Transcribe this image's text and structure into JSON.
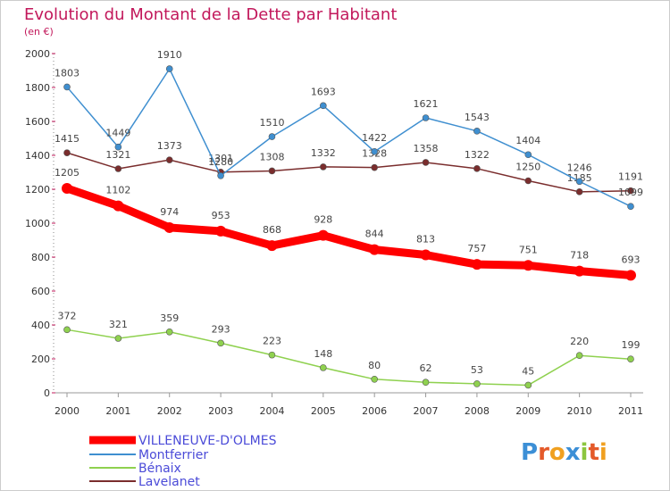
{
  "chart_data": {
    "type": "line",
    "title": "Evolution du Montant de la Dette par Habitant",
    "subtitle": "(en €)",
    "xlabel": "",
    "ylabel": "",
    "categories": [
      "2000",
      "2001",
      "2002",
      "2003",
      "2004",
      "2005",
      "2006",
      "2007",
      "2008",
      "2009",
      "2010",
      "2011"
    ],
    "ylim": [
      0,
      2000
    ],
    "yticks": [
      0,
      200,
      400,
      600,
      800,
      1000,
      1200,
      1400,
      1600,
      1800,
      2000
    ],
    "grid": false,
    "legend_position": "bottom-left",
    "series": [
      {
        "name": "VILLENEUVE-D'OLMES",
        "color": "#ff0000",
        "values": [
          1205,
          1102,
          974,
          953,
          868,
          928,
          844,
          813,
          757,
          751,
          718,
          693
        ]
      },
      {
        "name": "Montferrier",
        "color": "#3f8fd0",
        "values": [
          1803,
          1449,
          1910,
          1280,
          1510,
          1693,
          1422,
          1621,
          1543,
          1404,
          1246,
          1099
        ]
      },
      {
        "name": "Bénaix",
        "color": "#8fd14f",
        "values": [
          372,
          321,
          359,
          293,
          223,
          148,
          80,
          62,
          53,
          45,
          220,
          199
        ]
      },
      {
        "name": "Lavelanet",
        "color": "#7a2d2d",
        "values": [
          1415,
          1321,
          1373,
          1301,
          1308,
          1332,
          1328,
          1358,
          1322,
          1250,
          1185,
          1191
        ]
      }
    ]
  },
  "logo": {
    "text": "Proxiti"
  }
}
